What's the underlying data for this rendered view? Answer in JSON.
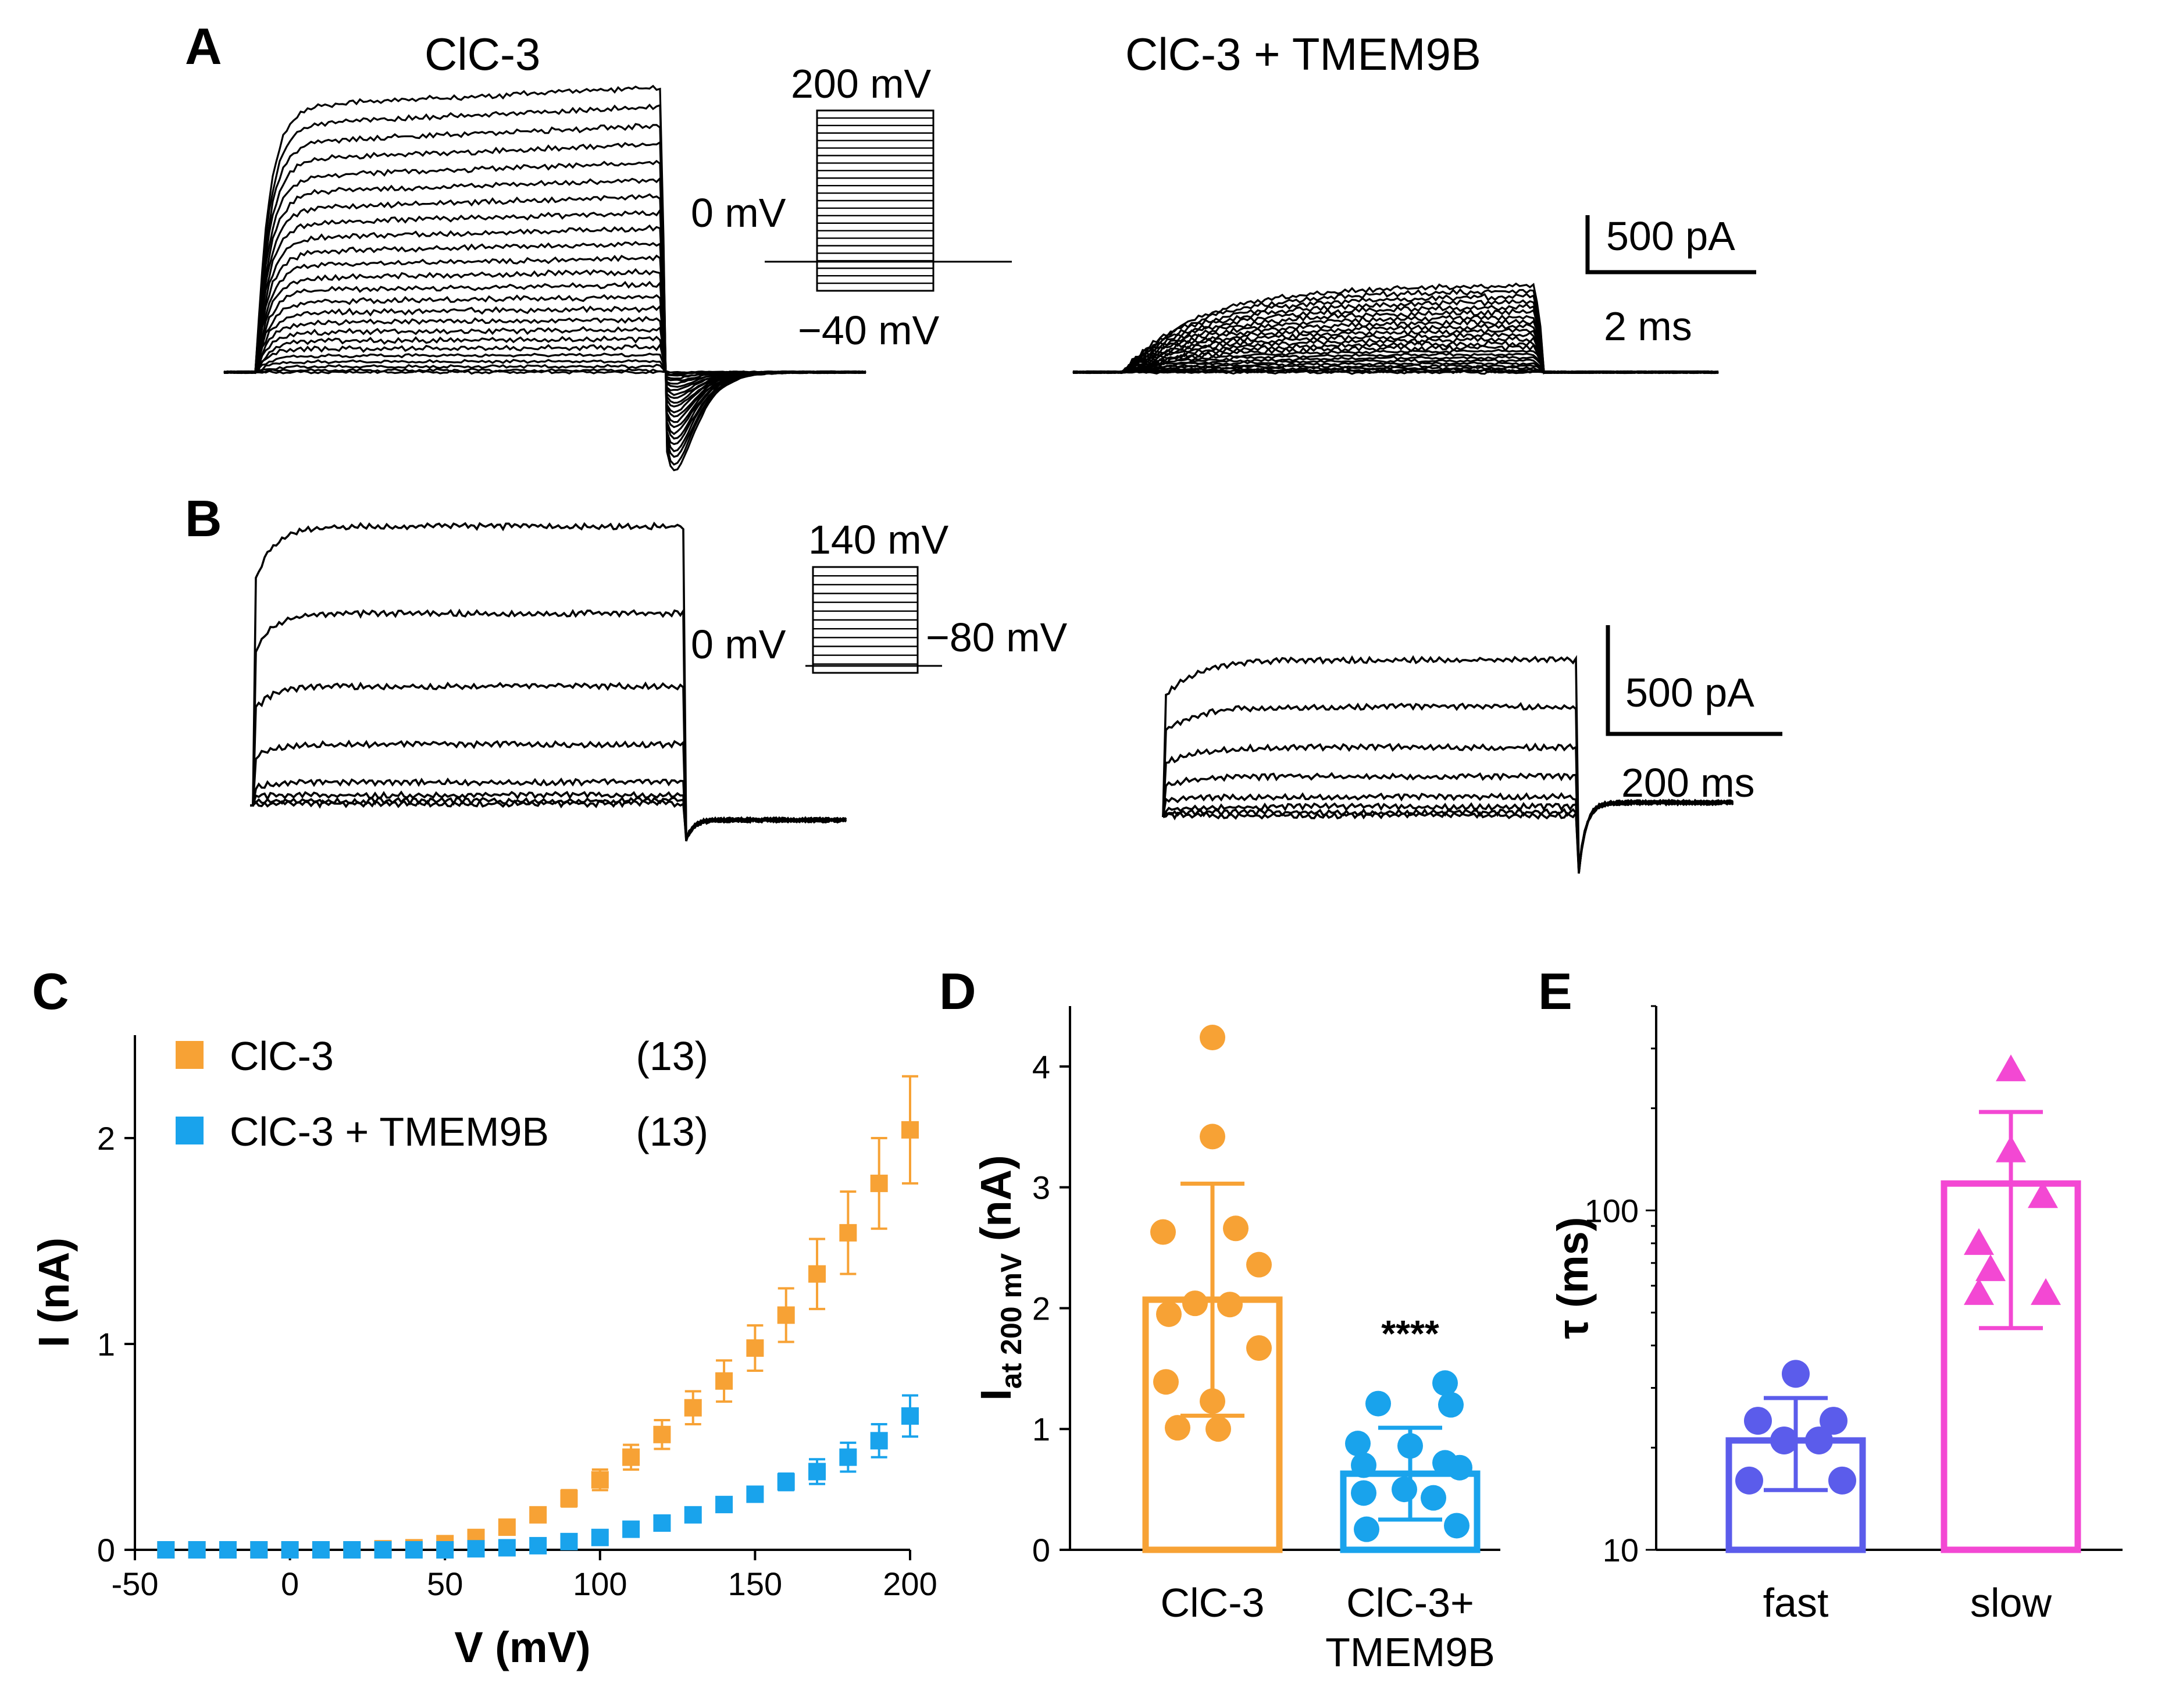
{
  "colors": {
    "clc3": "#F7A235",
    "clc3_tmem9b": "#19A3EC",
    "fast": "#5B5CEB",
    "slow": "#F348D3",
    "trace": "#000000"
  },
  "panel_a": {
    "letter": "A",
    "left_title": "ClC-3",
    "right_title": "ClC-3 + TMEM9B",
    "protocol": {
      "top": "200 mV",
      "hold": "0 mV",
      "bottom": "−40 mV"
    },
    "scale": {
      "current": "500 pA",
      "time": "2 ms"
    }
  },
  "panel_b": {
    "letter": "B",
    "protocol": {
      "top": "140 mV",
      "hold": "0 mV",
      "bottom": "−80 mV"
    },
    "scale": {
      "current": "500 pA",
      "time": "200 ms"
    }
  },
  "chart_data": [
    {
      "panel": "C",
      "type": "scatter",
      "xlabel": "V (mV)",
      "ylabel": "I (nA)",
      "xlim": [
        -50,
        200
      ],
      "ylim": [
        0,
        2.5
      ],
      "xticks": [
        "-50",
        "0",
        "50",
        "100",
        "150",
        "200"
      ],
      "yticks": [
        "0",
        "1",
        "2"
      ],
      "legend_location": "top-left",
      "x": [
        -40,
        -30,
        -20,
        -10,
        0,
        10,
        20,
        30,
        40,
        50,
        60,
        70,
        80,
        90,
        100,
        110,
        120,
        130,
        140,
        150,
        160,
        170,
        180,
        190,
        200
      ],
      "series": [
        {
          "name": "ClC-3",
          "n": "(13)",
          "color": "#F7A235",
          "values": [
            0,
            0,
            0,
            0,
            0,
            0,
            0,
            0.005,
            0.01,
            0.03,
            0.06,
            0.11,
            0.17,
            0.25,
            0.34,
            0.45,
            0.56,
            0.69,
            0.82,
            0.98,
            1.14,
            1.34,
            1.54,
            1.78,
            2.04
          ],
          "errors": [
            0,
            0,
            0,
            0,
            0,
            0,
            0,
            0,
            0,
            0.01,
            0.01,
            0.02,
            0.03,
            0.04,
            0.05,
            0.06,
            0.07,
            0.08,
            0.1,
            0.11,
            0.13,
            0.17,
            0.2,
            0.22,
            0.26
          ]
        },
        {
          "name": "ClC-3 + TMEM9B",
          "n": "(13)",
          "color": "#19A3EC",
          "values": [
            0,
            0,
            0,
            0,
            0,
            0,
            0,
            0,
            0,
            0,
            0.005,
            0.01,
            0.02,
            0.04,
            0.06,
            0.1,
            0.13,
            0.17,
            0.22,
            0.27,
            0.33,
            0.38,
            0.45,
            0.53,
            0.65
          ],
          "errors": [
            0,
            0,
            0,
            0,
            0,
            0,
            0,
            0,
            0,
            0,
            0,
            0,
            0.005,
            0.01,
            0.01,
            0.01,
            0.02,
            0.02,
            0.02,
            0.03,
            0.04,
            0.06,
            0.07,
            0.08,
            0.1
          ]
        }
      ]
    },
    {
      "panel": "D",
      "type": "bar",
      "ylabel": "I",
      "ylabel_sub": "at  200 mV",
      "ylabel_unit": " (nA)",
      "ylim": [
        0,
        4.5
      ],
      "yticks": [
        "0",
        "1",
        "2",
        "3",
        "4"
      ],
      "categories": [
        "ClC-3",
        "ClC-3+ TMEM9B"
      ],
      "category_lines": [
        [
          "ClC-3"
        ],
        [
          "ClC-3+",
          "TMEM9B"
        ]
      ],
      "means": [
        2.07,
        0.63
      ],
      "sd": [
        0.96,
        0.38
      ],
      "points": [
        [
          4.24,
          3.42,
          2.66,
          2.63,
          2.36,
          2.04,
          2.03,
          1.95,
          1.67,
          1.39,
          1.23,
          1.01,
          1.0
        ],
        [
          1.38,
          1.21,
          1.2,
          0.88,
          0.86,
          0.72,
          0.7,
          0.68,
          0.5,
          0.47,
          0.43,
          0.2,
          0.17
        ]
      ],
      "colors": [
        "#F7A235",
        "#19A3EC"
      ],
      "annotation": "****"
    },
    {
      "panel": "E",
      "type": "bar",
      "ylabel": "τ (ms)",
      "yscale": "log",
      "ylim": [
        10,
        400
      ],
      "yticks": [
        "10",
        "100"
      ],
      "categories": [
        "fast",
        "slow"
      ],
      "means": [
        21,
        120
      ],
      "sd_low": [
        15,
        45
      ],
      "sd_high": [
        28,
        195
      ],
      "points": [
        [
          33,
          24,
          24,
          21,
          21,
          16,
          16
        ],
        [
          260,
          150,
          110,
          80,
          67,
          57,
          57
        ]
      ],
      "markers": [
        "circle",
        "triangle"
      ],
      "colors": [
        "#5B5CEB",
        "#F348D3"
      ]
    }
  ]
}
